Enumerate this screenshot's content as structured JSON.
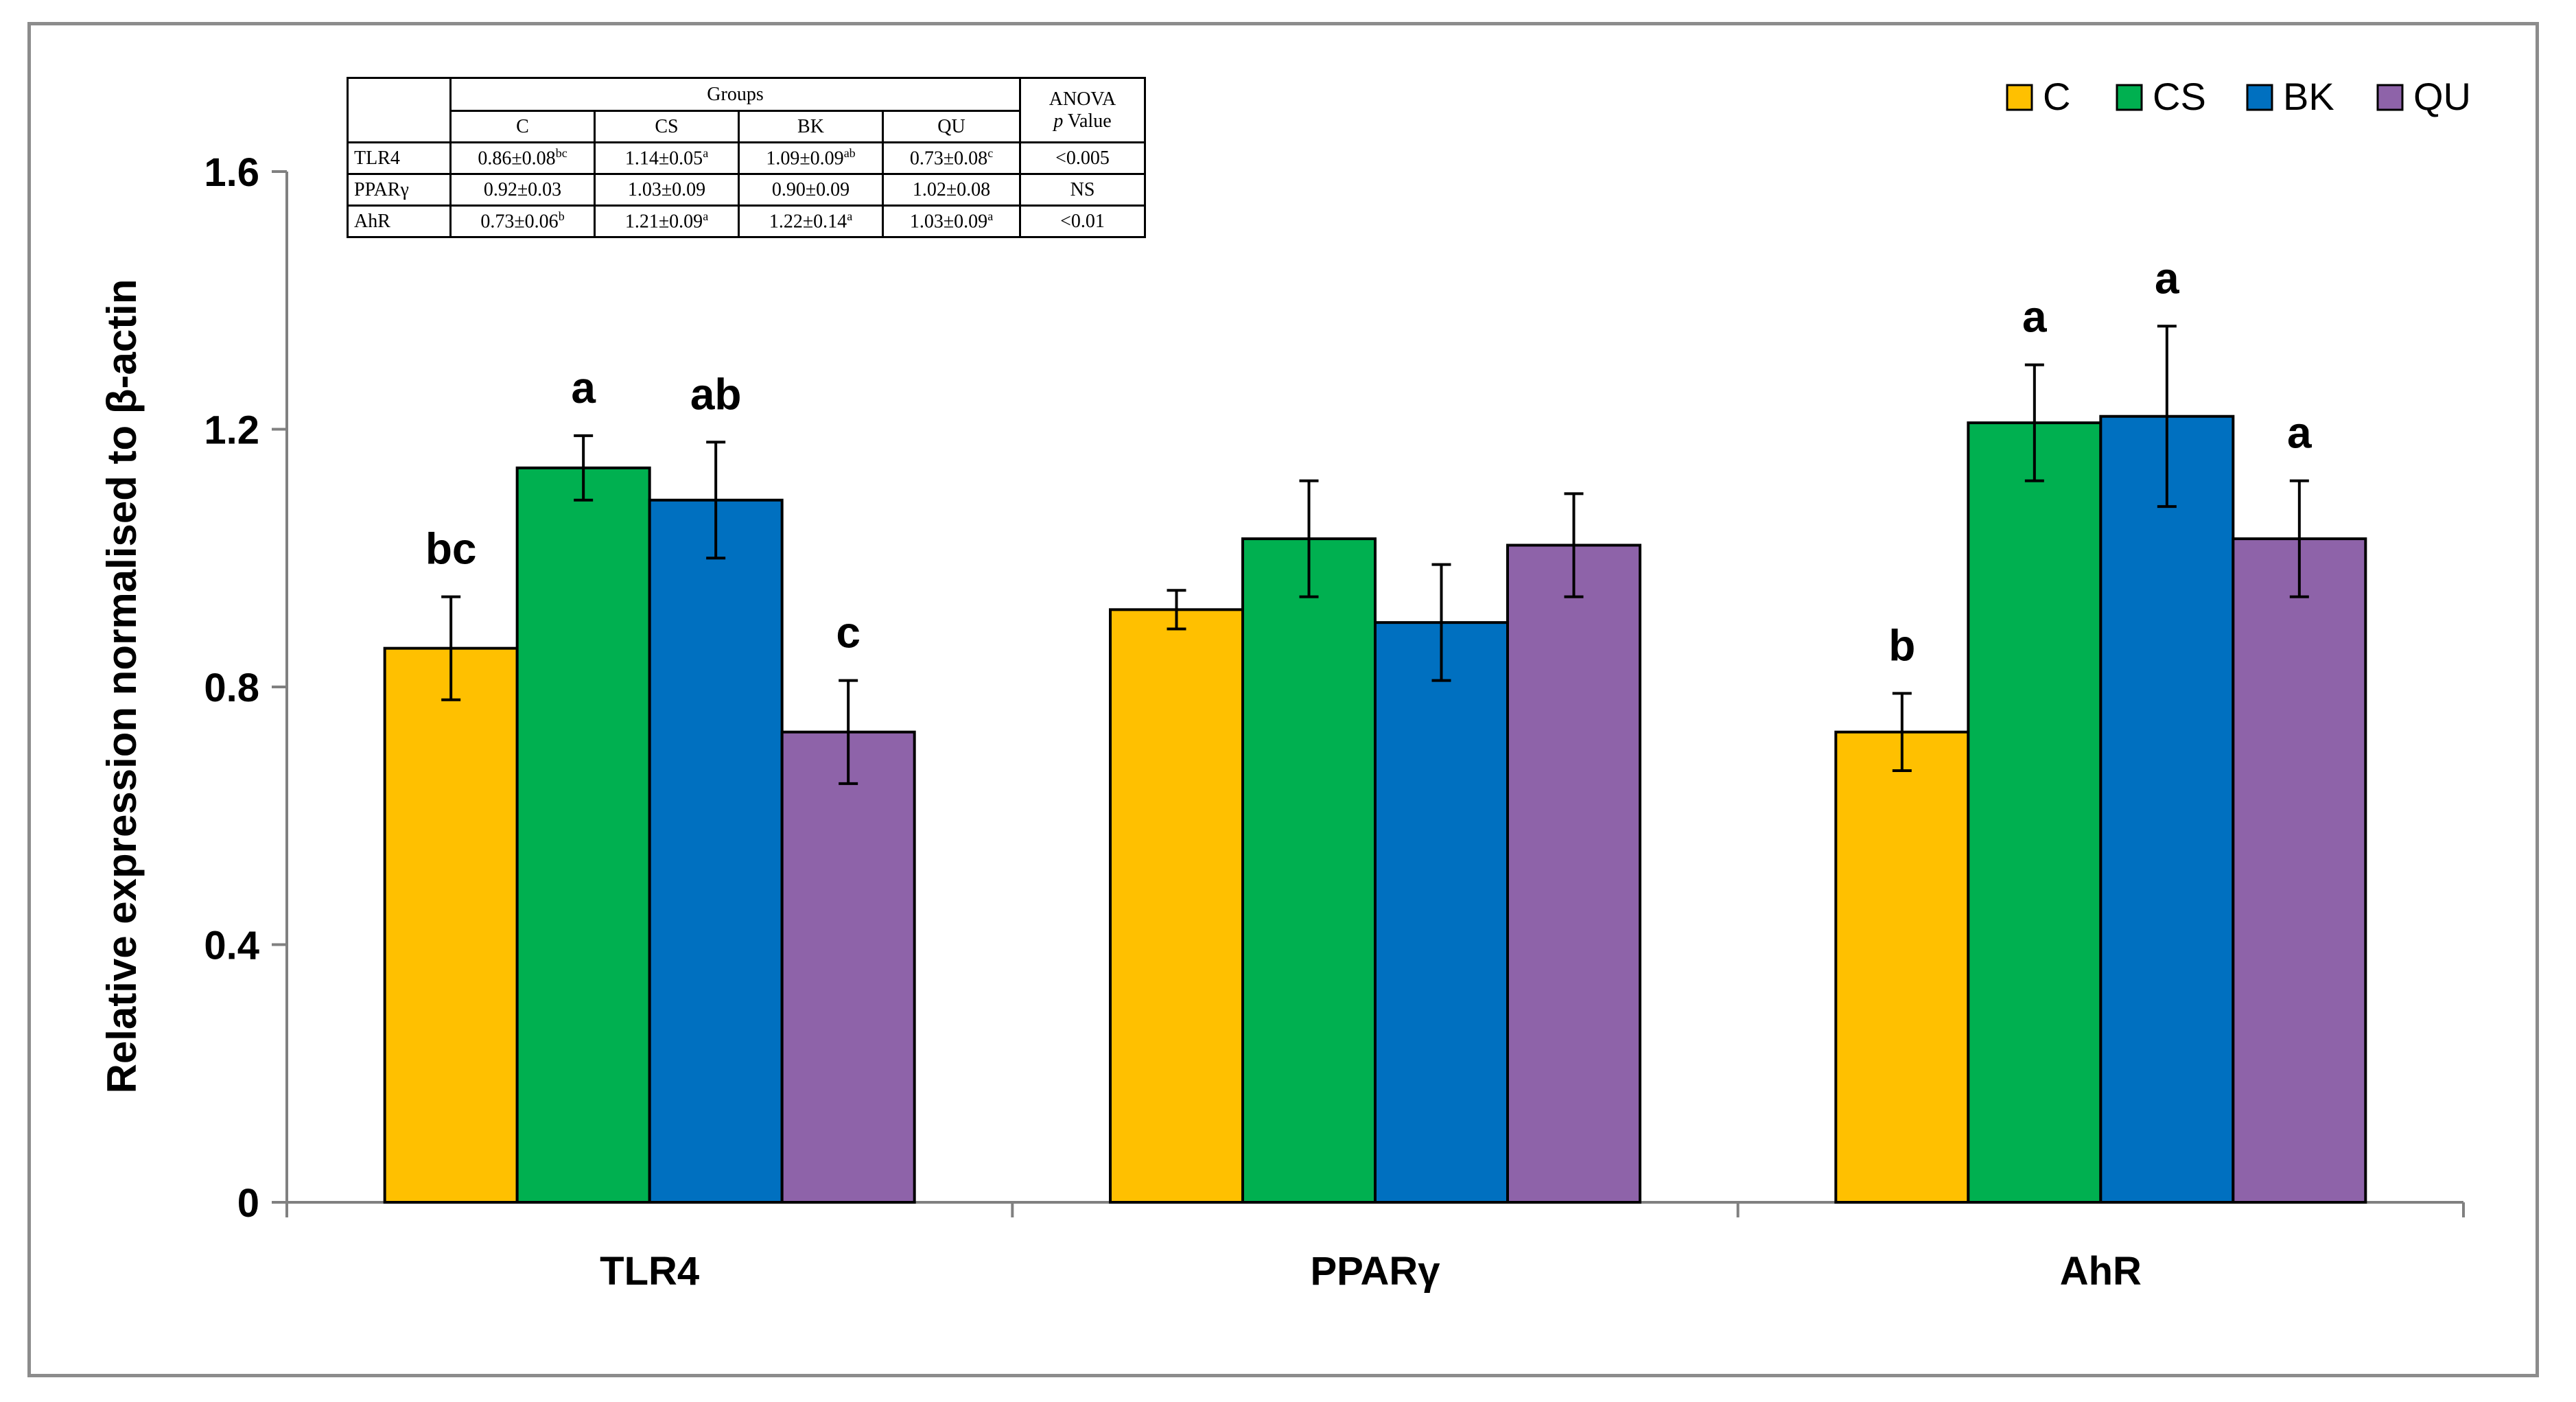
{
  "chart_data": {
    "type": "bar",
    "ylabel": "Relative expression normalised to β-actin",
    "ylim": [
      0,
      1.6
    ],
    "yticks": [
      "0",
      "0.4",
      "0.8",
      "1.2",
      "1.6"
    ],
    "ytick_values": [
      0,
      0.4,
      0.8,
      1.2,
      1.6
    ],
    "categories": [
      "TLR4",
      "PPARγ",
      "AhR"
    ],
    "series": [
      {
        "name": "C",
        "color": "#FFC000",
        "values": [
          0.86,
          0.92,
          0.73
        ],
        "errors": [
          0.08,
          0.03,
          0.06
        ],
        "letters": [
          "bc",
          "",
          "b"
        ]
      },
      {
        "name": "CS",
        "color": "#00B050",
        "values": [
          1.14,
          1.03,
          1.21
        ],
        "errors": [
          0.05,
          0.09,
          0.09
        ],
        "letters": [
          "a",
          "",
          "a"
        ]
      },
      {
        "name": "BK",
        "color": "#0070C0",
        "values": [
          1.09,
          0.9,
          1.22
        ],
        "errors": [
          0.09,
          0.09,
          0.14
        ],
        "letters": [
          "ab",
          "",
          "a"
        ]
      },
      {
        "name": "QU",
        "color": "#8E63A9",
        "values": [
          0.73,
          1.02,
          1.03
        ],
        "errors": [
          0.08,
          0.08,
          0.09
        ],
        "letters": [
          "c",
          "",
          "a"
        ]
      }
    ],
    "legend_position": "top-right",
    "grid": false
  },
  "table": {
    "groups_label": "Groups",
    "anova_label": "ANOVA",
    "p_label": "p",
    "value_label": "Value",
    "columns": [
      "C",
      "CS",
      "BK",
      "QU"
    ],
    "rows": [
      {
        "label": "TLR4",
        "cells": [
          {
            "v": "0.86±0.08",
            "s": "bc"
          },
          {
            "v": "1.14±0.05",
            "s": "a"
          },
          {
            "v": "1.09±0.09",
            "s": "ab"
          },
          {
            "v": "0.73±0.08",
            "s": "c"
          }
        ],
        "p": "<0.005"
      },
      {
        "label": "PPARγ",
        "cells": [
          {
            "v": "0.92±0.03",
            "s": ""
          },
          {
            "v": "1.03±0.09",
            "s": ""
          },
          {
            "v": "0.90±0.09",
            "s": ""
          },
          {
            "v": "1.02±0.08",
            "s": ""
          }
        ],
        "p": "NS"
      },
      {
        "label": "AhR",
        "cells": [
          {
            "v": "0.73±0.06",
            "s": "b"
          },
          {
            "v": "1.21±0.09",
            "s": "a"
          },
          {
            "v": "1.22±0.14",
            "s": "a"
          },
          {
            "v": "1.03±0.09",
            "s": "a"
          }
        ],
        "p": "<0.01"
      }
    ]
  }
}
